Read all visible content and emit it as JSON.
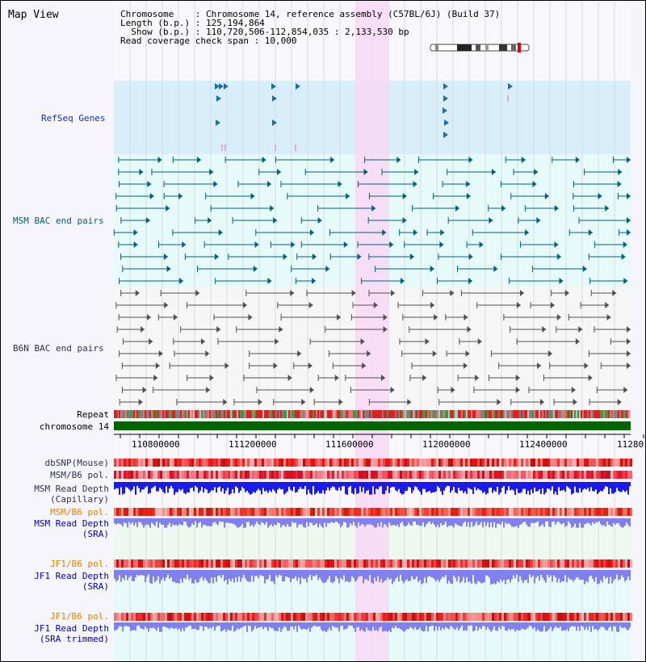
{
  "title": "Map View",
  "info": {
    "chromosome": "Chromosome    : Chromosome 14, reference assembly (C57BL/6J) (Build 37)",
    "length": "Length (b.p.) : 125,194,864",
    "show": "  Show (b.p.) : 110,720,506-112,854,035 : 2,133,530 bp",
    "coverage": "Read coverage check span : 10,000"
  },
  "tracks": {
    "refseq": "RefSeq Genes",
    "msm_bac": "MSM BAC end pairs",
    "b6n_bac": "B6N BAC end pairs",
    "repeat": "Repeat",
    "chromosome": "chromosome 14",
    "dbsnp": "dbSNP(Mouse)",
    "msm_b6_pol": "MSM/B6 pol.",
    "msm_depth_cap_1": "MSM Read Depth",
    "msm_depth_cap_2": "(Capillary)",
    "msm_b6_pol_sra": "MSM/B6 pol.",
    "msm_depth_sra_1": "MSM Read Depth",
    "msm_depth_sra_2": "(SRA)",
    "jf1_pol": "JF1/B6 pol.",
    "jf1_depth_1": "JF1 Read Depth",
    "jf1_depth_2": "(SRA)",
    "jf1_pol_trim": "JF1/B6 pol.",
    "jf1_trim_1": "JF1 Read Depth",
    "jf1_trim_2": "(SRA trimmed)"
  },
  "axis": {
    "ticks": [
      "110800000",
      "111200000",
      "111600000",
      "112000000",
      "112400000",
      "11280"
    ]
  },
  "colors": {
    "highlight": "#f8d8f4",
    "refseq_bg": "#d8eefa",
    "msm_bg": "#e6fafa",
    "chromosome_bar": "#006400",
    "msm_feature": "#006080",
    "b6n_feature": "#505050",
    "depth_blue": "#1a1aee",
    "depth_lavender": "#8080f0"
  }
}
